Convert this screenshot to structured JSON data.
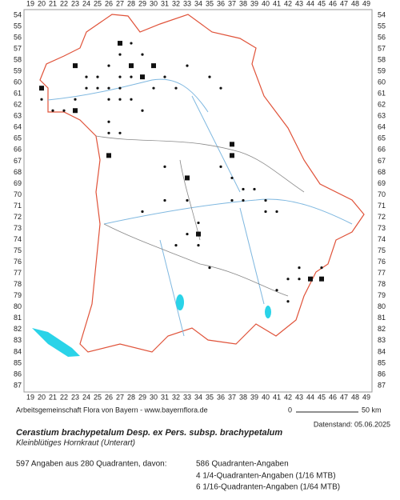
{
  "map": {
    "columns": [
      19,
      20,
      21,
      22,
      23,
      24,
      25,
      26,
      27,
      28,
      29,
      30,
      31,
      32,
      33,
      34,
      35,
      36,
      37,
      38,
      39,
      40,
      41,
      42,
      43,
      44,
      45,
      46,
      47,
      48,
      49
    ],
    "rows": [
      54,
      55,
      56,
      57,
      58,
      59,
      60,
      61,
      62,
      63,
      64,
      65,
      66,
      67,
      68,
      69,
      70,
      71,
      72,
      73,
      74,
      75,
      76,
      77,
      78,
      79,
      80,
      81,
      82,
      83,
      84,
      85,
      86,
      87
    ]
  },
  "footer": {
    "credit": "Arbeitsgemeinschaft Flora von Bayern - www.bayernflora.de",
    "scale_start": "0",
    "scale_end": "50 km",
    "date": "Datenstand: 05.06.2025"
  },
  "header": {
    "title": "Cerastium brachypetalum Desp. ex Pers. subsp. brachypetalum",
    "subtitle": "Kleinblütiges Hornkraut (Unterart)"
  },
  "stats": {
    "summary": "597 Angaben aus 280 Quadranten, davon:",
    "lines": [
      "586 Quadranten-Angaben",
      "4 1/4-Quadranten-Angaben (1/16 MTB)",
      "6 1/16-Quadranten-Angaben (1/64 MTB)"
    ]
  }
}
